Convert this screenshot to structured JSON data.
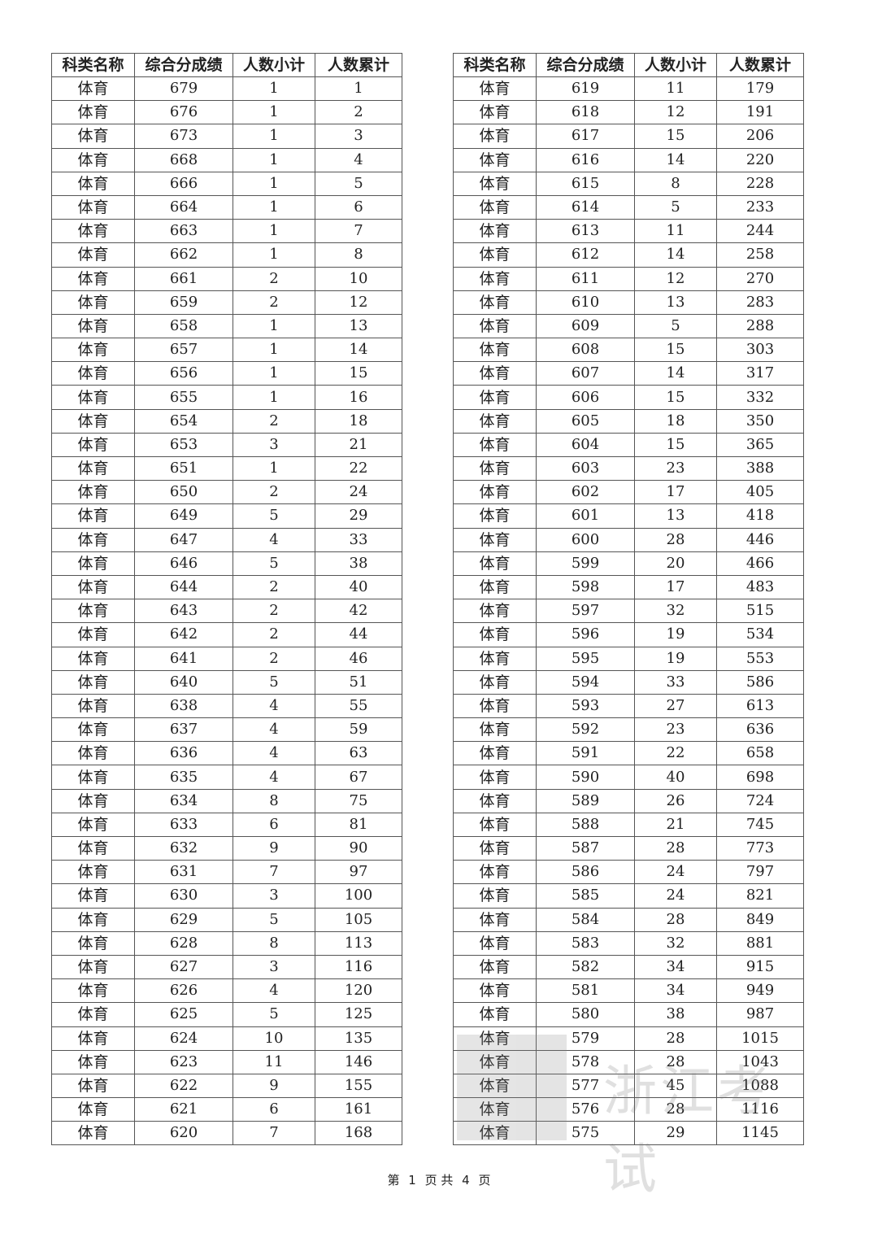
{
  "headers": [
    "科类名称",
    "综合分成绩",
    "人数小计",
    "人数累计"
  ],
  "subject": "体育",
  "left_rows": [
    [
      679,
      1,
      1
    ],
    [
      676,
      1,
      2
    ],
    [
      673,
      1,
      3
    ],
    [
      668,
      1,
      4
    ],
    [
      666,
      1,
      5
    ],
    [
      664,
      1,
      6
    ],
    [
      663,
      1,
      7
    ],
    [
      662,
      1,
      8
    ],
    [
      661,
      2,
      10
    ],
    [
      659,
      2,
      12
    ],
    [
      658,
      1,
      13
    ],
    [
      657,
      1,
      14
    ],
    [
      656,
      1,
      15
    ],
    [
      655,
      1,
      16
    ],
    [
      654,
      2,
      18
    ],
    [
      653,
      3,
      21
    ],
    [
      651,
      1,
      22
    ],
    [
      650,
      2,
      24
    ],
    [
      649,
      5,
      29
    ],
    [
      647,
      4,
      33
    ],
    [
      646,
      5,
      38
    ],
    [
      644,
      2,
      40
    ],
    [
      643,
      2,
      42
    ],
    [
      642,
      2,
      44
    ],
    [
      641,
      2,
      46
    ],
    [
      640,
      5,
      51
    ],
    [
      638,
      4,
      55
    ],
    [
      637,
      4,
      59
    ],
    [
      636,
      4,
      63
    ],
    [
      635,
      4,
      67
    ],
    [
      634,
      8,
      75
    ],
    [
      633,
      6,
      81
    ],
    [
      632,
      9,
      90
    ],
    [
      631,
      7,
      97
    ],
    [
      630,
      3,
      100
    ],
    [
      629,
      5,
      105
    ],
    [
      628,
      8,
      113
    ],
    [
      627,
      3,
      116
    ],
    [
      626,
      4,
      120
    ],
    [
      625,
      5,
      125
    ],
    [
      624,
      10,
      135
    ],
    [
      623,
      11,
      146
    ],
    [
      622,
      9,
      155
    ],
    [
      621,
      6,
      161
    ],
    [
      620,
      7,
      168
    ]
  ],
  "right_rows": [
    [
      619,
      11,
      179
    ],
    [
      618,
      12,
      191
    ],
    [
      617,
      15,
      206
    ],
    [
      616,
      14,
      220
    ],
    [
      615,
      8,
      228
    ],
    [
      614,
      5,
      233
    ],
    [
      613,
      11,
      244
    ],
    [
      612,
      14,
      258
    ],
    [
      611,
      12,
      270
    ],
    [
      610,
      13,
      283
    ],
    [
      609,
      5,
      288
    ],
    [
      608,
      15,
      303
    ],
    [
      607,
      14,
      317
    ],
    [
      606,
      15,
      332
    ],
    [
      605,
      18,
      350
    ],
    [
      604,
      15,
      365
    ],
    [
      603,
      23,
      388
    ],
    [
      602,
      17,
      405
    ],
    [
      601,
      13,
      418
    ],
    [
      600,
      28,
      446
    ],
    [
      599,
      20,
      466
    ],
    [
      598,
      17,
      483
    ],
    [
      597,
      32,
      515
    ],
    [
      596,
      19,
      534
    ],
    [
      595,
      19,
      553
    ],
    [
      594,
      33,
      586
    ],
    [
      593,
      27,
      613
    ],
    [
      592,
      23,
      636
    ],
    [
      591,
      22,
      658
    ],
    [
      590,
      40,
      698
    ],
    [
      589,
      26,
      724
    ],
    [
      588,
      21,
      745
    ],
    [
      587,
      28,
      773
    ],
    [
      586,
      24,
      797
    ],
    [
      585,
      24,
      821
    ],
    [
      584,
      28,
      849
    ],
    [
      583,
      32,
      881
    ],
    [
      582,
      34,
      915
    ],
    [
      581,
      34,
      949
    ],
    [
      580,
      38,
      987
    ],
    [
      579,
      28,
      1015
    ],
    [
      578,
      28,
      1043
    ],
    [
      577,
      45,
      1088
    ],
    [
      576,
      28,
      1116
    ],
    [
      575,
      29,
      1145
    ]
  ],
  "footer": {
    "prefix": "第",
    "page": "1",
    "middle": "页 共",
    "total": "4",
    "suffix": "页"
  },
  "watermark": "浙江考试"
}
